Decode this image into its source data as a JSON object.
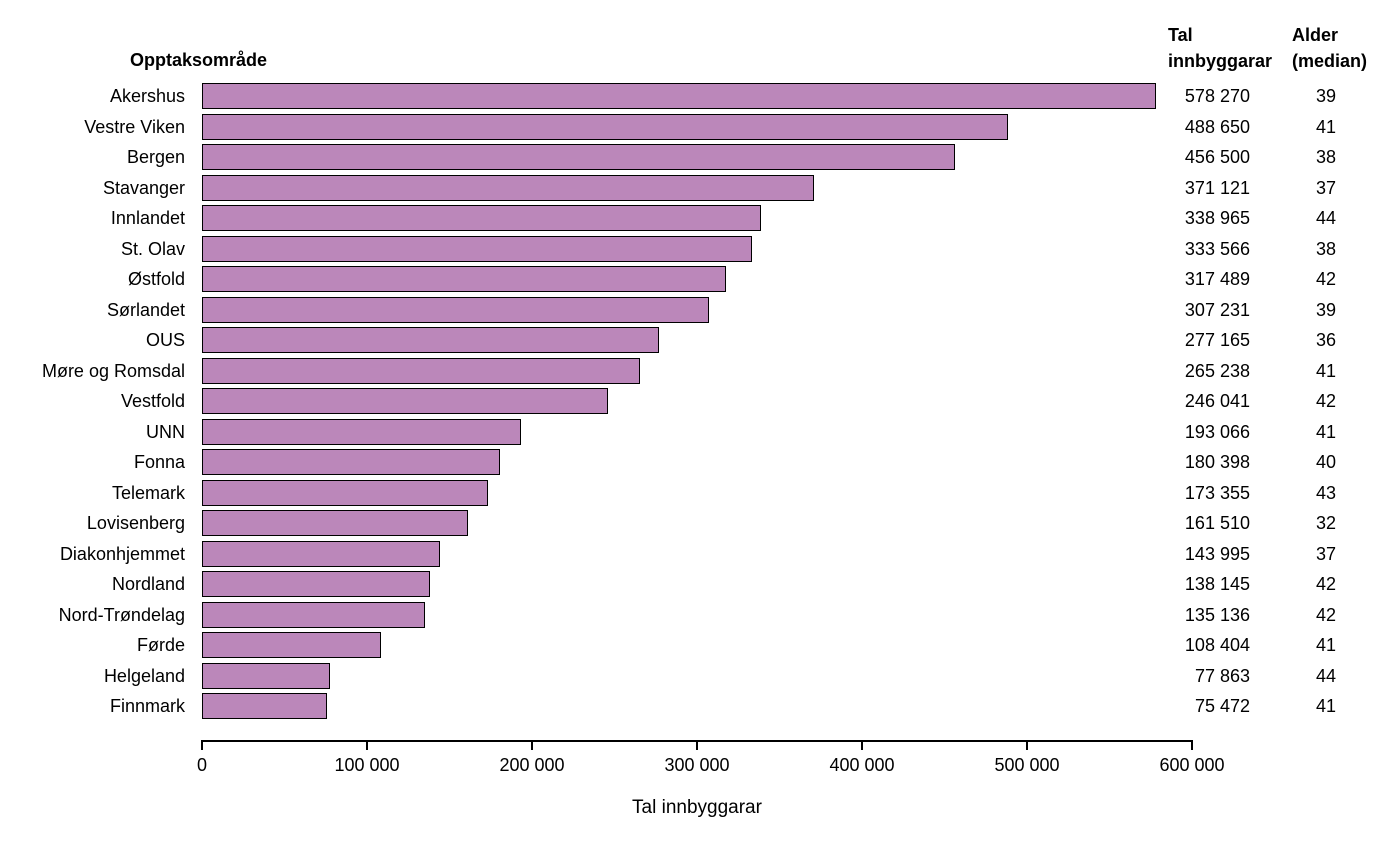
{
  "chart_data": {
    "type": "bar",
    "orientation": "horizontal",
    "headers": {
      "category": "Opptaksområde",
      "value_line1": "Tal",
      "value_line2": "innbyggarar",
      "age_line1": "Alder",
      "age_line2": "(median)"
    },
    "xlabel": "Tal innbyggarar",
    "xlim": [
      0,
      600000
    ],
    "x_ticks": [
      0,
      100000,
      200000,
      300000,
      400000,
      500000,
      600000
    ],
    "x_tick_labels": [
      "0",
      "100 000",
      "200 000",
      "300 000",
      "400 000",
      "500 000",
      "600 000"
    ],
    "bar_color": "#bb87ba",
    "bar_border_color": "#000000",
    "grid": false,
    "legend": false,
    "rows": [
      {
        "label": "Akershus",
        "value": 578270,
        "value_label": "578 270",
        "median_age": "39"
      },
      {
        "label": "Vestre Viken",
        "value": 488650,
        "value_label": "488 650",
        "median_age": "41"
      },
      {
        "label": "Bergen",
        "value": 456500,
        "value_label": "456 500",
        "median_age": "38"
      },
      {
        "label": "Stavanger",
        "value": 371121,
        "value_label": "371 121",
        "median_age": "37"
      },
      {
        "label": "Innlandet",
        "value": 338965,
        "value_label": "338 965",
        "median_age": "44"
      },
      {
        "label": "St. Olav",
        "value": 333566,
        "value_label": "333 566",
        "median_age": "38"
      },
      {
        "label": "Østfold",
        "value": 317489,
        "value_label": "317 489",
        "median_age": "42"
      },
      {
        "label": "Sørlandet",
        "value": 307231,
        "value_label": "307 231",
        "median_age": "39"
      },
      {
        "label": "OUS",
        "value": 277165,
        "value_label": "277 165",
        "median_age": "36"
      },
      {
        "label": "Møre og Romsdal",
        "value": 265238,
        "value_label": "265 238",
        "median_age": "41"
      },
      {
        "label": "Vestfold",
        "value": 246041,
        "value_label": "246 041",
        "median_age": "42"
      },
      {
        "label": "UNN",
        "value": 193066,
        "value_label": "193 066",
        "median_age": "41"
      },
      {
        "label": "Fonna",
        "value": 180398,
        "value_label": "180 398",
        "median_age": "40"
      },
      {
        "label": "Telemark",
        "value": 173355,
        "value_label": "173 355",
        "median_age": "43"
      },
      {
        "label": "Lovisenberg",
        "value": 161510,
        "value_label": "161 510",
        "median_age": "32"
      },
      {
        "label": "Diakonhjemmet",
        "value": 143995,
        "value_label": "143 995",
        "median_age": "37"
      },
      {
        "label": "Nordland",
        "value": 138145,
        "value_label": "138 145",
        "median_age": "42"
      },
      {
        "label": "Nord-Trøndelag",
        "value": 135136,
        "value_label": "135 136",
        "median_age": "42"
      },
      {
        "label": "Førde",
        "value": 108404,
        "value_label": "108 404",
        "median_age": "41"
      },
      {
        "label": "Helgeland",
        "value": 77863,
        "value_label": "77 863",
        "median_age": "44"
      },
      {
        "label": "Finnmark",
        "value": 75472,
        "value_label": "75 472",
        "median_age": "41"
      }
    ]
  }
}
